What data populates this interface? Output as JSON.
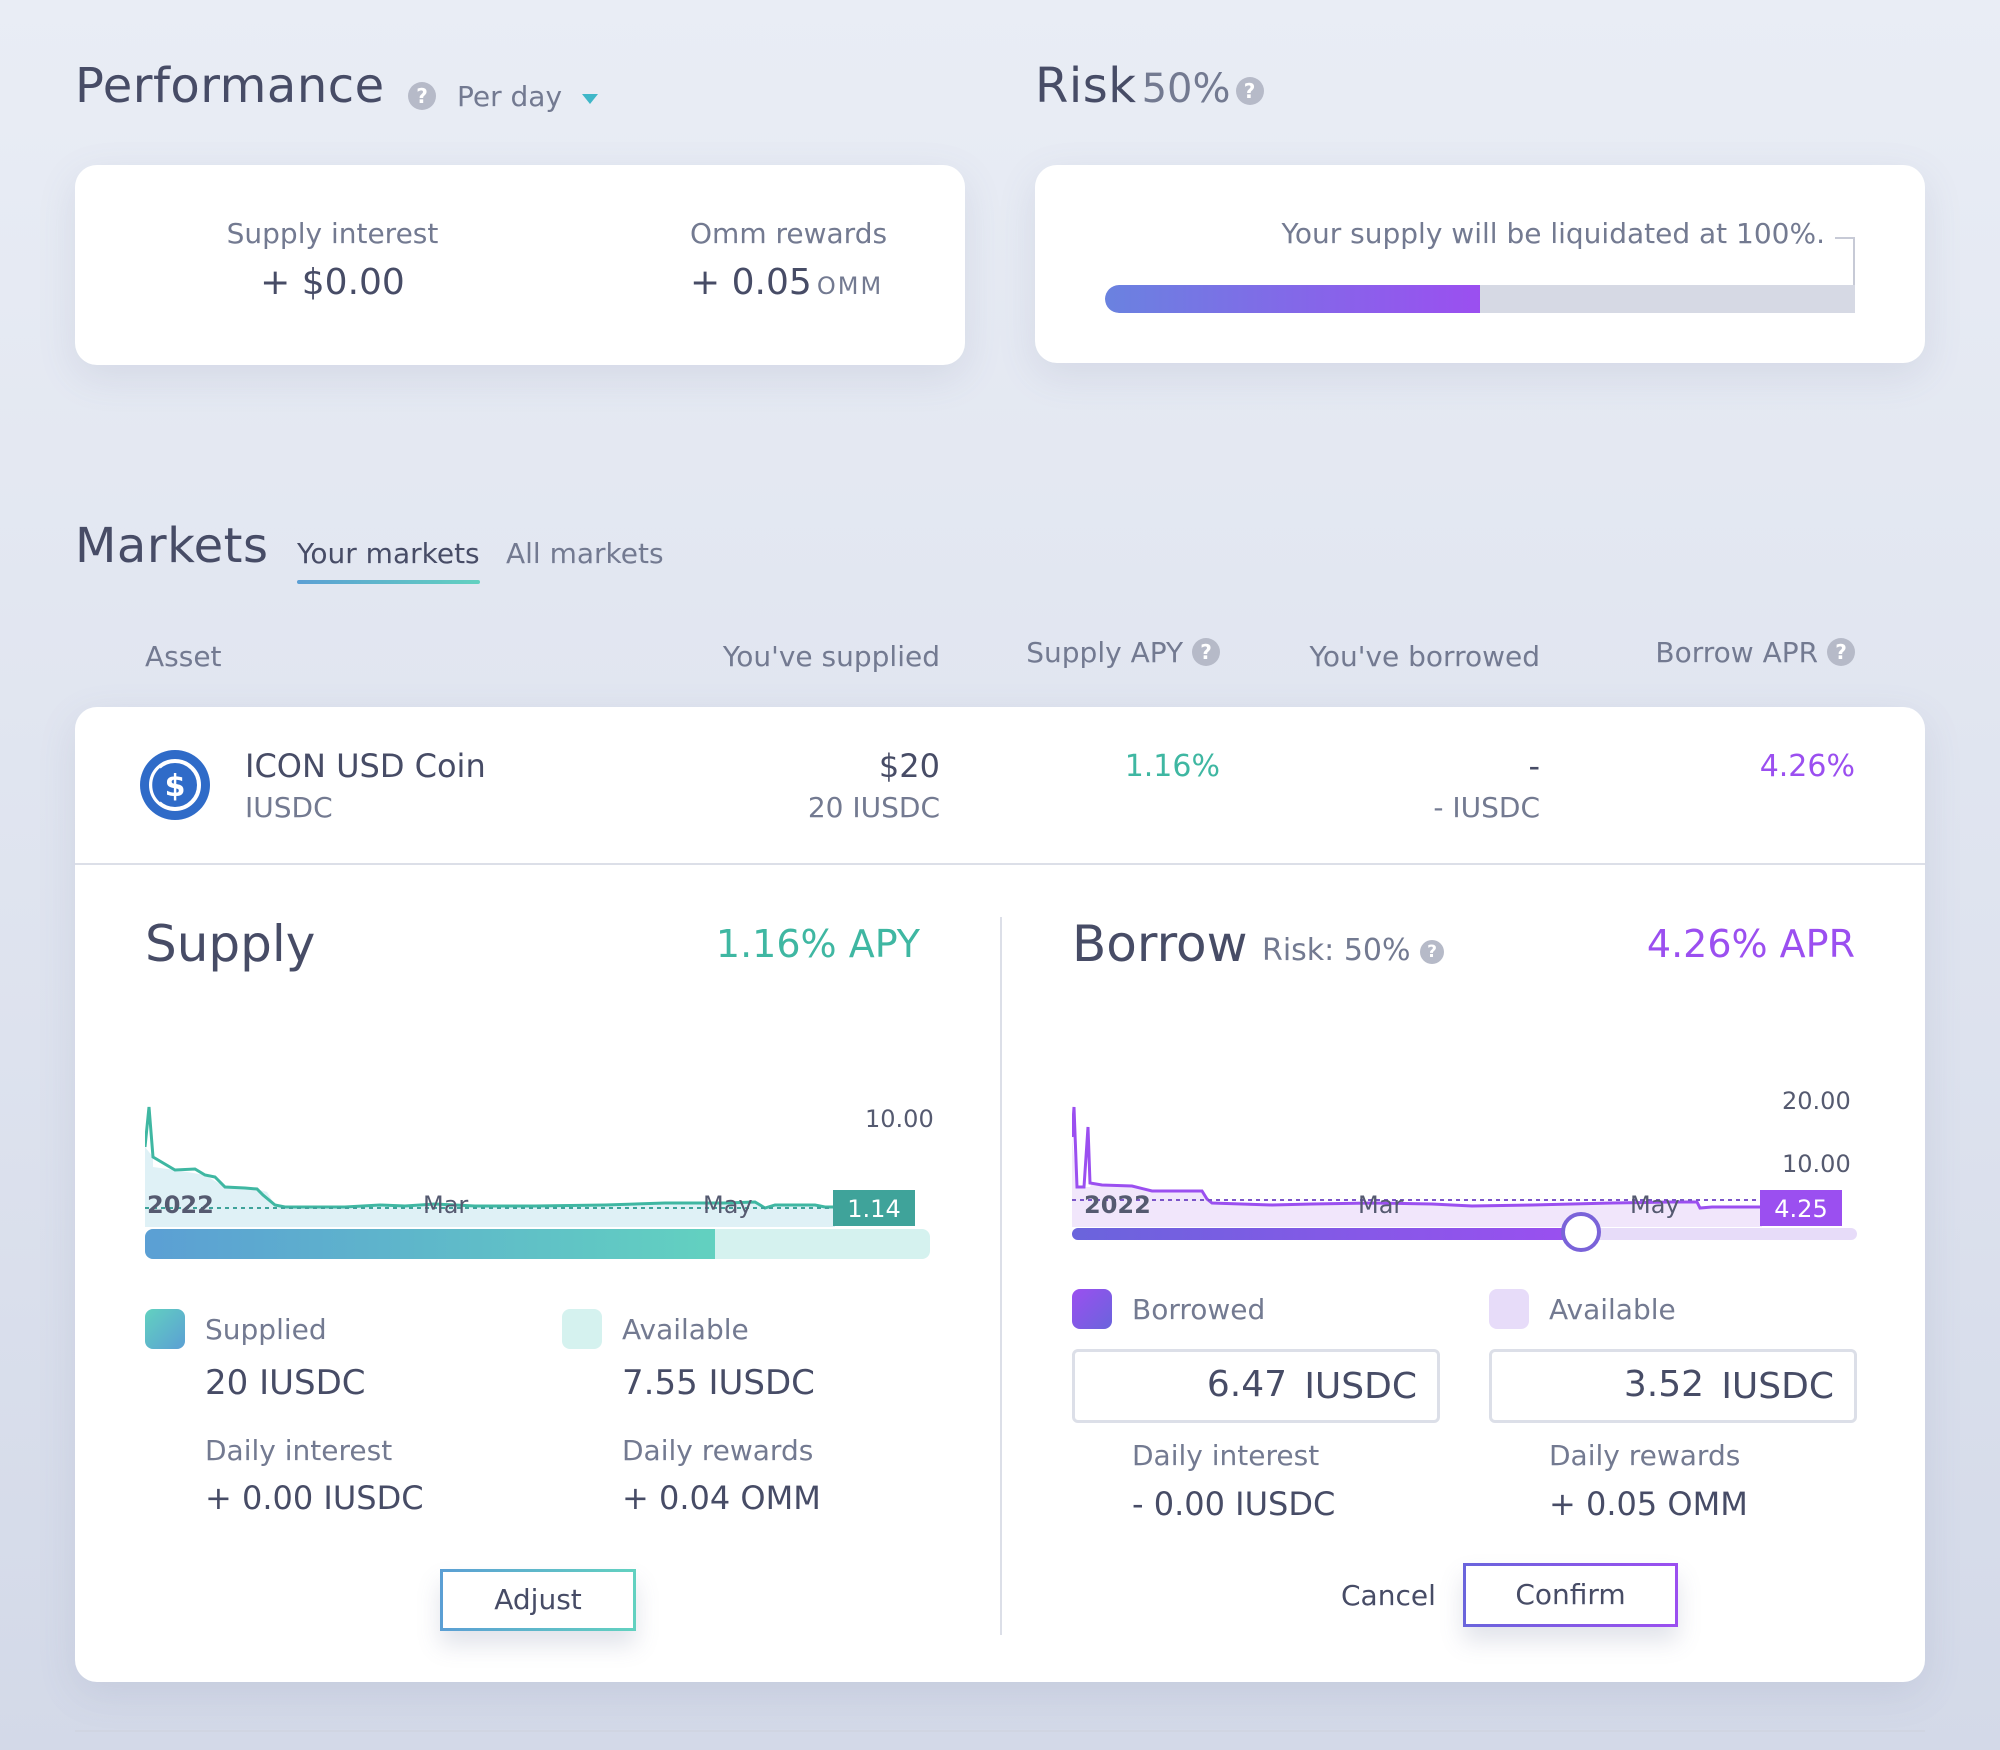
{
  "performance": {
    "title": "Performance",
    "period": "Per day",
    "supply_interest_label": "Supply interest",
    "supply_interest_value": "+ $0.00",
    "omm_rewards_label": "Omm rewards",
    "omm_rewards_value": "+ 0.05",
    "omm_rewards_unit": "OMM"
  },
  "risk": {
    "title": "Risk",
    "percent": "50%",
    "message": "Your supply will be liquidated at 100%.",
    "level": 0.5,
    "colors": {
      "start": "#6a82e0",
      "end": "#9b4ff0",
      "track": "#d6d9e4"
    }
  },
  "markets": {
    "title": "Markets",
    "tabs": [
      "Your markets",
      "All markets"
    ],
    "active_tab": "Your markets",
    "columns": [
      "Asset",
      "You've supplied",
      "Supply APY",
      "You've borrowed",
      "Borrow APR"
    ],
    "row": {
      "asset_name": "ICON USD Coin",
      "asset_symbol": "IUSDC",
      "supplied_usd": "$20",
      "supplied_amount": "20 IUSDC",
      "supply_apy": "1.16%",
      "borrowed_usd": "-",
      "borrowed_amount": "- IUSDC",
      "borrow_apr": "4.26%"
    }
  },
  "supply_panel": {
    "title": "Supply",
    "apy": "1.16% APY",
    "chart": {
      "y_tick": "10.00",
      "current_value": "1.14",
      "x_ticks": [
        "2022",
        "Mar",
        "May"
      ]
    },
    "slider_level": 0.726,
    "supplied_label": "Supplied",
    "supplied_value": "20 IUSDC",
    "available_label": "Available",
    "available_value": "7.55 IUSDC",
    "daily_interest_label": "Daily interest",
    "daily_interest_value": "+ 0.00 IUSDC",
    "daily_rewards_label": "Daily rewards",
    "daily_rewards_value": "+ 0.04 OMM",
    "adjust_label": "Adjust",
    "colors": {
      "accent": "#3fb7a2",
      "fill_start": "#5b9fd4",
      "fill_end": "#62d1c0",
      "track": "#d5f2ef"
    }
  },
  "borrow_panel": {
    "title": "Borrow",
    "risk_label": "Risk: 50%",
    "apr": "4.26% APR",
    "chart": {
      "y_ticks": [
        "20.00",
        "10.00"
      ],
      "current_value": "4.25",
      "x_ticks": [
        "2022",
        "Mar",
        "May"
      ]
    },
    "slider_level": 0.648,
    "borrowed_label": "Borrowed",
    "borrowed_input": "6.47",
    "borrowed_unit": "IUSDC",
    "available_label": "Available",
    "available_input": "3.52",
    "available_unit": "IUSDC",
    "daily_interest_label": "Daily interest",
    "daily_interest_value": "- 0.00 IUSDC",
    "daily_rewards_label": "Daily rewards",
    "daily_rewards_value": "+ 0.05 OMM",
    "cancel_label": "Cancel",
    "confirm_label": "Confirm",
    "colors": {
      "accent": "#9b4ff0",
      "fill_start": "#6a64dc",
      "fill_end": "#9b4ff0",
      "track": "#e7dcf9"
    }
  }
}
